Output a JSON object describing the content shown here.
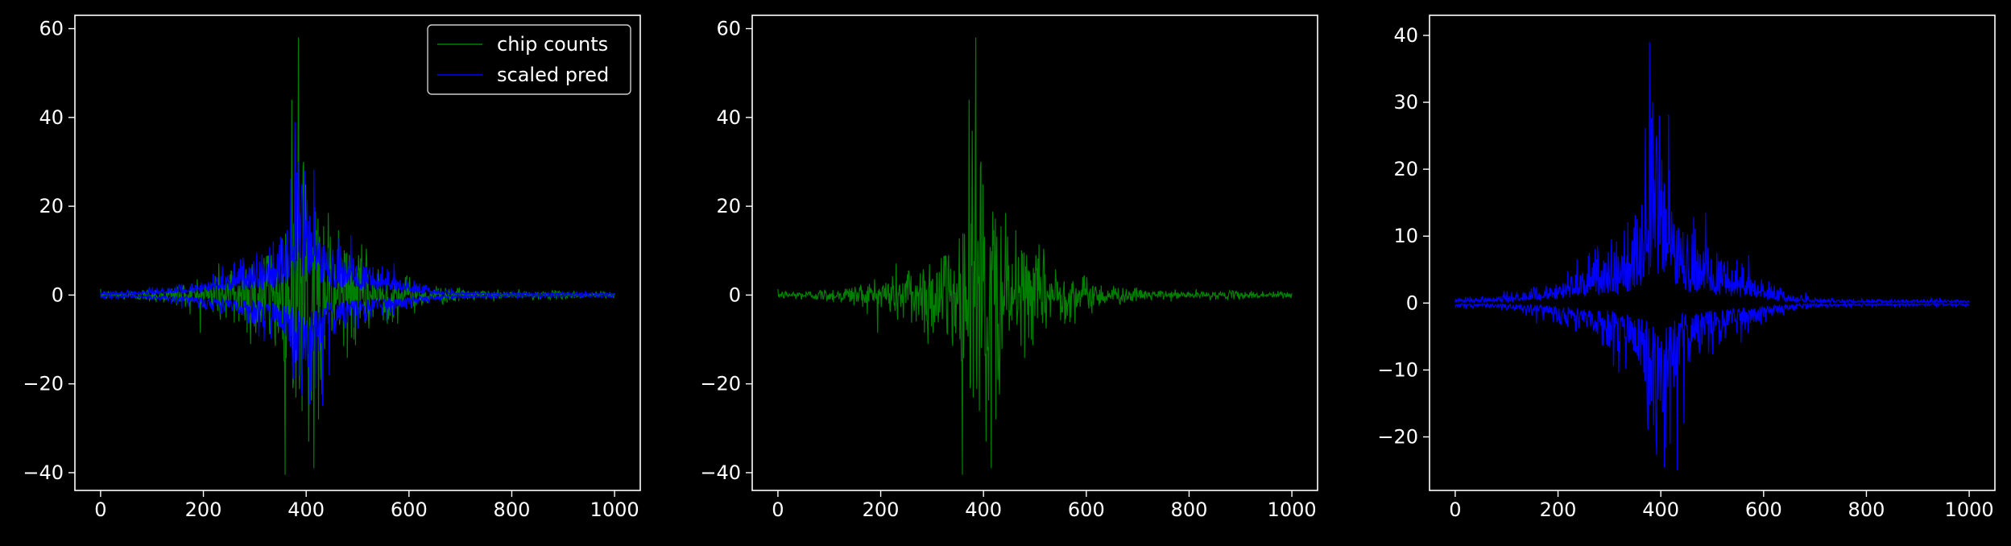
{
  "colors": {
    "background": "#000000",
    "axes": "#ffffff",
    "green": "#008000",
    "blue": "#0000ff"
  },
  "chart_data": [
    {
      "type": "line",
      "title": "",
      "xlabel": "",
      "ylabel": "",
      "xlim": [
        -50,
        1050
      ],
      "ylim": [
        -44,
        63
      ],
      "x_ticks": [
        0,
        200,
        400,
        600,
        800,
        1000
      ],
      "x_tick_labels": [
        "0",
        "200",
        "400",
        "600",
        "800",
        "1000"
      ],
      "y_ticks": [
        -40,
        -20,
        0,
        20,
        40,
        60
      ],
      "y_tick_labels": [
        "−40",
        "−20",
        "0",
        "20",
        "40",
        "60"
      ],
      "legend": {
        "placement": "top-right",
        "entries": [
          "chip counts",
          "scaled pred"
        ]
      },
      "series": [
        {
          "name": "chip counts",
          "color": "#008000",
          "kind": "chip",
          "peak_max": 58,
          "peak_min": -39,
          "peak_x": 385
        },
        {
          "name": "scaled pred",
          "color": "#0000ff",
          "kind": "pred",
          "peak_max": 39,
          "peak_min": -25,
          "peak_x": 378
        }
      ]
    },
    {
      "type": "line",
      "title": "",
      "xlabel": "",
      "ylabel": "",
      "xlim": [
        -50,
        1050
      ],
      "ylim": [
        -44,
        63
      ],
      "x_ticks": [
        0,
        200,
        400,
        600,
        800,
        1000
      ],
      "x_tick_labels": [
        "0",
        "200",
        "400",
        "600",
        "800",
        "1000"
      ],
      "y_ticks": [
        -40,
        -20,
        0,
        20,
        40,
        60
      ],
      "y_tick_labels": [
        "−40",
        "−20",
        "0",
        "20",
        "40",
        "60"
      ],
      "series": [
        {
          "name": "chip counts",
          "color": "#008000",
          "kind": "chip",
          "peak_max": 58,
          "peak_min": -39,
          "peak_x": 385
        }
      ]
    },
    {
      "type": "line",
      "title": "",
      "xlabel": "",
      "ylabel": "",
      "xlim": [
        -50,
        1050
      ],
      "ylim": [
        -28,
        43
      ],
      "x_ticks": [
        0,
        200,
        400,
        600,
        800,
        1000
      ],
      "x_tick_labels": [
        "0",
        "200",
        "400",
        "600",
        "800",
        "1000"
      ],
      "y_ticks": [
        -20,
        -10,
        0,
        10,
        20,
        30,
        40
      ],
      "y_tick_labels": [
        "−20",
        "−10",
        "0",
        "10",
        "20",
        "30",
        "40"
      ],
      "series": [
        {
          "name": "scaled pred",
          "color": "#0000ff",
          "kind": "pred",
          "peak_max": 39,
          "peak_min": -25,
          "peak_x": 378
        }
      ]
    }
  ]
}
